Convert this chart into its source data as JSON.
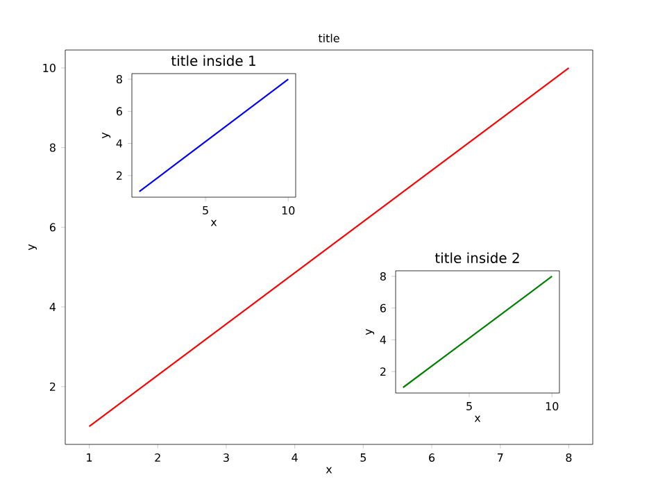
{
  "chart_data": [
    {
      "type": "line",
      "title": "title",
      "xlabel": "x",
      "ylabel": "y",
      "x": [
        1,
        8
      ],
      "xlim": [
        0.65,
        8.35
      ],
      "ylim": [
        0.55,
        10.45
      ],
      "xticks": [
        1,
        2,
        3,
        4,
        5,
        6,
        7,
        8
      ],
      "yticks": [
        2,
        4,
        6,
        8,
        10
      ],
      "grid": false,
      "series": [
        {
          "color": "#ff0000",
          "values": [
            1,
            10
          ]
        }
      ]
    },
    {
      "type": "line",
      "title": "title inside 1",
      "xlabel": "x",
      "ylabel": "y",
      "x": [
        1,
        10
      ],
      "xlim": [
        0.55,
        10.45
      ],
      "ylim": [
        0.65,
        8.35
      ],
      "xticks": [
        5,
        10
      ],
      "yticks": [
        2,
        4,
        6,
        8
      ],
      "grid": false,
      "series": [
        {
          "color": "#0000ff",
          "values": [
            1,
            8
          ]
        }
      ]
    },
    {
      "type": "line",
      "title": "title inside 2",
      "xlabel": "x",
      "ylabel": "y",
      "x": [
        1,
        10
      ],
      "xlim": [
        0.55,
        10.45
      ],
      "ylim": [
        0.65,
        8.35
      ],
      "xticks": [
        5,
        10
      ],
      "yticks": [
        2,
        4,
        6,
        8
      ],
      "grid": false,
      "series": [
        {
          "color": "#008000",
          "values": [
            1,
            8
          ]
        }
      ]
    }
  ]
}
